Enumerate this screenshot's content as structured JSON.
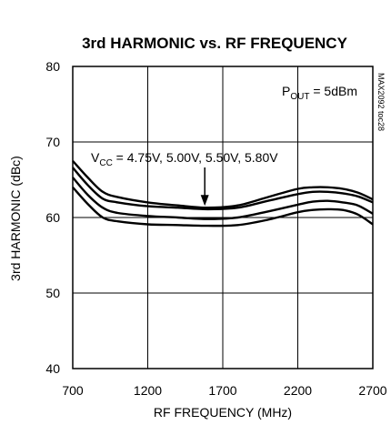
{
  "chart_data": {
    "type": "line",
    "title": "3rd HARMONIC vs. RF FREQUENCY",
    "xlabel": "RF FREQUENCY (MHz)",
    "ylabel": "3rd HARMONIC (dBc)",
    "xlim": [
      700,
      2700
    ],
    "ylim": [
      40,
      80
    ],
    "xticks": [
      700,
      1200,
      1700,
      2200,
      2700
    ],
    "yticks": [
      40,
      50,
      60,
      70,
      80
    ],
    "grid": true,
    "series": [
      {
        "x": [
          700,
          800,
          900,
          1000,
          1200,
          1400,
          1600,
          1800,
          2000,
          2200,
          2300,
          2400,
          2500,
          2600,
          2700
        ],
        "y": [
          67.5,
          65.3,
          63.4,
          62.7,
          62.0,
          61.6,
          61.3,
          61.6,
          62.7,
          63.8,
          64.0,
          64.0,
          63.8,
          63.3,
          62.4
        ]
      },
      {
        "x": [
          700,
          800,
          900,
          1000,
          1200,
          1400,
          1600,
          1800,
          2000,
          2200,
          2300,
          2400,
          2500,
          2600,
          2700
        ],
        "y": [
          66.6,
          64.3,
          62.5,
          62.0,
          61.5,
          61.3,
          61.1,
          61.3,
          62.2,
          63.1,
          63.4,
          63.4,
          63.2,
          62.8,
          62.0
        ]
      },
      {
        "x": [
          700,
          800,
          900,
          1000,
          1200,
          1400,
          1600,
          1800,
          2000,
          2200,
          2300,
          2400,
          2500,
          2600,
          2700
        ],
        "y": [
          65.3,
          63.0,
          61.3,
          60.6,
          60.2,
          60.0,
          59.8,
          60.0,
          60.8,
          61.7,
          62.1,
          62.2,
          62.0,
          61.6,
          60.5
        ]
      },
      {
        "x": [
          700,
          800,
          900,
          1000,
          1200,
          1400,
          1600,
          1800,
          2000,
          2200,
          2300,
          2400,
          2500,
          2600,
          2700
        ],
        "y": [
          64.0,
          61.8,
          60.0,
          59.5,
          59.1,
          59.0,
          58.9,
          59.0,
          59.7,
          60.7,
          61.0,
          61.1,
          61.0,
          60.4,
          59.1
        ]
      }
    ],
    "annotations": {
      "pout_main": "P",
      "pout_sub": "OUT",
      "pout_rest": " = 5dBm",
      "vcc_main": "V",
      "vcc_sub": "CC",
      "vcc_rest": " = 4.75V, 5.00V, 5.50V, 5.80V",
      "figure_id": "MAX2092 toc28"
    },
    "arrow_target": {
      "x": 1580,
      "y": 61.3
    }
  }
}
